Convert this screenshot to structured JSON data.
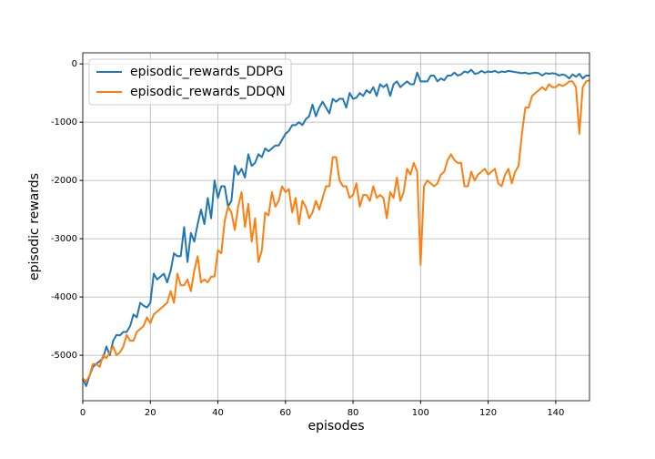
{
  "chart_data": {
    "type": "line",
    "xlabel": "episodes",
    "ylabel": "episodic rewards",
    "x": [
      0,
      1,
      2,
      3,
      4,
      5,
      6,
      7,
      8,
      9,
      10,
      11,
      12,
      13,
      14,
      15,
      16,
      17,
      18,
      19,
      20,
      21,
      22,
      23,
      24,
      25,
      26,
      27,
      28,
      29,
      30,
      31,
      32,
      33,
      34,
      35,
      36,
      37,
      38,
      39,
      40,
      41,
      42,
      43,
      44,
      45,
      46,
      47,
      48,
      49,
      50,
      51,
      52,
      53,
      54,
      55,
      56,
      57,
      58,
      59,
      60,
      61,
      62,
      63,
      64,
      65,
      66,
      67,
      68,
      69,
      70,
      71,
      72,
      73,
      74,
      75,
      76,
      77,
      78,
      79,
      80,
      81,
      82,
      83,
      84,
      85,
      86,
      87,
      88,
      89,
      90,
      91,
      92,
      93,
      94,
      95,
      96,
      97,
      98,
      99,
      100,
      101,
      102,
      103,
      104,
      105,
      106,
      107,
      108,
      109,
      110,
      111,
      112,
      113,
      114,
      115,
      116,
      117,
      118,
      119,
      120,
      121,
      122,
      123,
      124,
      125,
      126,
      127,
      128,
      129,
      130,
      131,
      132,
      133,
      134,
      135,
      136,
      137,
      138,
      139,
      140,
      141,
      142,
      143,
      144,
      145,
      146,
      147,
      148,
      149,
      150
    ],
    "series": [
      {
        "name": "episodic_rewards_DDPG",
        "color": "#1f77b4",
        "values": [
          -5400,
          -5530,
          -5350,
          -5200,
          -5150,
          -5100,
          -5050,
          -4850,
          -5000,
          -4750,
          -4650,
          -4660,
          -4600,
          -4600,
          -4500,
          -4300,
          -4350,
          -4100,
          -4150,
          -4180,
          -4100,
          -3600,
          -3700,
          -3650,
          -3600,
          -3750,
          -3550,
          -3250,
          -3300,
          -3300,
          -2800,
          -3400,
          -2900,
          -3050,
          -2750,
          -2500,
          -2750,
          -2300,
          -2650,
          -2000,
          -2300,
          -2100,
          -2100,
          -2450,
          -2350,
          -1750,
          -1900,
          -1800,
          -1950,
          -1550,
          -1750,
          -1700,
          -1550,
          -1600,
          -1450,
          -1500,
          -1450,
          -1400,
          -1400,
          -1300,
          -1200,
          -1150,
          -1050,
          -1050,
          -1000,
          -1050,
          -950,
          -900,
          -700,
          -900,
          -750,
          -650,
          -750,
          -850,
          -600,
          -650,
          -600,
          -600,
          -750,
          -500,
          -600,
          -580,
          -500,
          -550,
          -450,
          -500,
          -400,
          -550,
          -350,
          -400,
          -350,
          -550,
          -350,
          -300,
          -400,
          -350,
          -300,
          -350,
          -350,
          -150,
          -300,
          -300,
          -300,
          -200,
          -200,
          -300,
          -250,
          -280,
          -200,
          -200,
          -150,
          -200,
          -180,
          -130,
          -150,
          -100,
          -170,
          -160,
          -120,
          -150,
          -130,
          -140,
          -120,
          -150,
          -130,
          -140,
          -120,
          -130,
          -140,
          -150,
          -160,
          -150,
          -170,
          -160,
          -150,
          -160,
          -200,
          -160,
          -170,
          -160,
          -170,
          -200,
          -180,
          -200,
          -250,
          -180,
          -220,
          -170,
          -250,
          -200,
          -200
        ]
      },
      {
        "name": "episodic_rewards_DDQN",
        "color": "#ff7f0e",
        "values": [
          -5400,
          -5450,
          -5350,
          -5150,
          -5150,
          -5200,
          -5000,
          -5050,
          -4950,
          -4850,
          -5000,
          -4950,
          -4850,
          -4650,
          -4750,
          -4750,
          -4600,
          -4550,
          -4500,
          -4350,
          -4450,
          -4300,
          -4250,
          -4200,
          -4150,
          -4100,
          -3900,
          -4100,
          -3600,
          -3800,
          -3800,
          -3700,
          -3900,
          -3550,
          -3300,
          -3750,
          -3700,
          -3750,
          -3650,
          -3650,
          -3200,
          -3250,
          -2700,
          -2450,
          -2550,
          -2850,
          -2450,
          -2200,
          -2800,
          -2400,
          -3050,
          -2650,
          -3400,
          -3200,
          -2550,
          -2600,
          -2200,
          -2450,
          -2350,
          -2100,
          -2200,
          -2150,
          -2550,
          -2300,
          -2750,
          -2350,
          -2450,
          -2650,
          -2550,
          -2350,
          -2500,
          -2300,
          -2100,
          -2100,
          -1600,
          -1600,
          -2000,
          -2100,
          -2100,
          -2300,
          -2250,
          -2050,
          -2450,
          -2250,
          -2250,
          -2350,
          -2100,
          -2300,
          -2250,
          -2300,
          -2650,
          -2200,
          -2300,
          -1950,
          -2350,
          -2200,
          -1800,
          -1900,
          -1700,
          -1850,
          -3450,
          -2100,
          -2000,
          -2050,
          -2100,
          -2050,
          -1900,
          -1850,
          -1650,
          -1550,
          -1650,
          -1700,
          -1700,
          -2100,
          -2100,
          -1850,
          -2000,
          -1900,
          -1850,
          -1800,
          -1900,
          -1850,
          -1800,
          -2050,
          -2100,
          -1900,
          -1800,
          -2050,
          -1850,
          -1750,
          -1200,
          -750,
          -750,
          -550,
          -500,
          -450,
          -400,
          -450,
          -350,
          -400,
          -400,
          -350,
          -380,
          -350,
          -300,
          -300,
          -400,
          -1200,
          -400,
          -300,
          -280
        ]
      }
    ],
    "xlim": [
      0,
      150
    ],
    "xticks": [
      0,
      20,
      40,
      60,
      80,
      100,
      120,
      140
    ],
    "ylim": [
      -5780,
      190
    ],
    "yticks": [
      -5000,
      -4000,
      -3000,
      -2000,
      -1000,
      0
    ],
    "grid": true,
    "legend": "upper-left"
  }
}
